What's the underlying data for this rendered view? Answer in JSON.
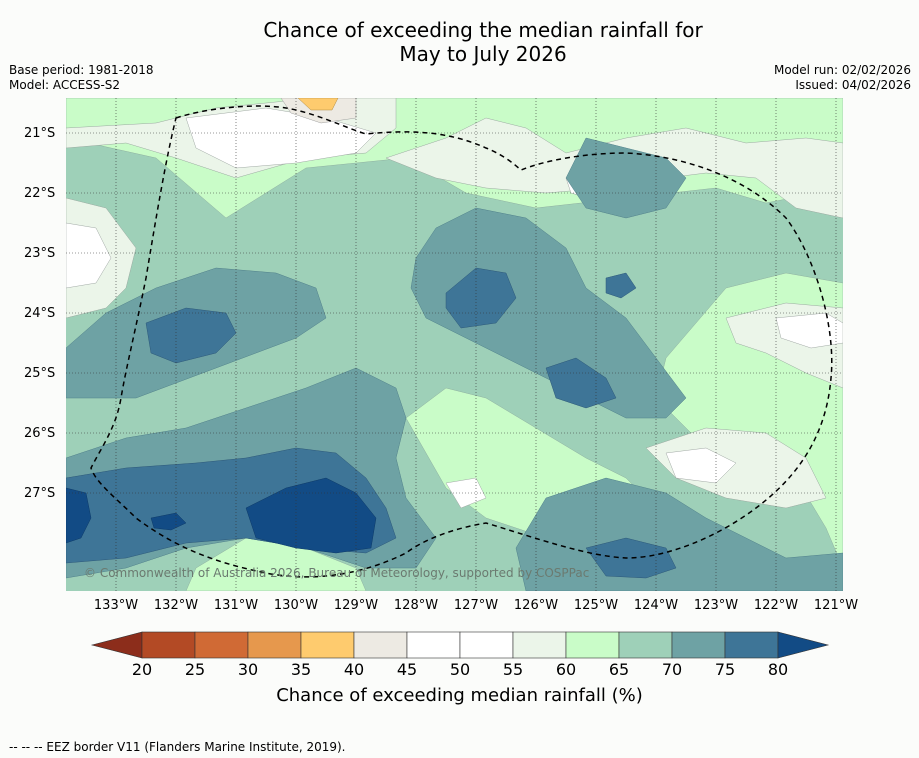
{
  "title": {
    "line1": "Chance of exceeding the median rainfall for",
    "line2": "May to July 2026"
  },
  "meta_left": {
    "base_period": "Base period: 1981-2018",
    "model": "Model: ACCESS-S2"
  },
  "meta_right": {
    "model_run": "Model run: 02/02/2026",
    "issued": "Issued: 04/02/2026"
  },
  "map": {
    "lat_labels": [
      "21°S",
      "22°S",
      "23°S",
      "24°S",
      "25°S",
      "26°S",
      "27°S"
    ],
    "lon_labels": [
      "133°W",
      "132°W",
      "131°W",
      "130°W",
      "129°W",
      "128°W",
      "127°W",
      "126°W",
      "125°W",
      "124°W",
      "123°W",
      "122°W",
      "121°W"
    ],
    "copyright": "© Commonwealth of Australia 2026, Bureau of Meteorology, supported by COSPPac"
  },
  "colorbar": {
    "ticks": [
      "20",
      "25",
      "30",
      "35",
      "40",
      "45",
      "50",
      "55",
      "60",
      "65",
      "70",
      "75",
      "80"
    ],
    "colors": {
      "lt20": "#8c2d1b",
      "20_25": "#b34a25",
      "25_30": "#d06a35",
      "30_35": "#e6984d",
      "35_40": "#fecb6e",
      "40_45": "#edeae3",
      "45_50": "#ffffff",
      "50_55": "#ffffff",
      "55_60": "#ebf5e9",
      "60_65": "#c9fcc8",
      "65_70": "#9ed0b8",
      "70_75": "#6ea2a4",
      "75_80": "#3e7597",
      "gt80": "#124b85"
    },
    "label": "Chance of exceeding median rainfall (%)"
  },
  "footer": "--  --  -- EEZ border V11 (Flanders Marine Institute, 2019)."
}
